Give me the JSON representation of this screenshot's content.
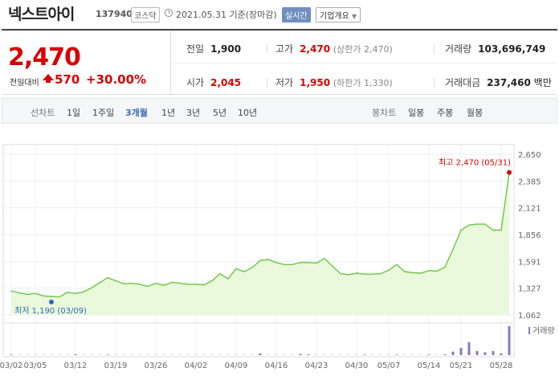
{
  "header": {
    "name": "넥스트아이",
    "code": "137940",
    "market": "코스닥",
    "asof": "2021.05.31 기준(장마감)",
    "realtime_label": "실시간",
    "company_label": "기업개요"
  },
  "quote": {
    "price": "2,470",
    "change_label": "전일대비",
    "change": "570",
    "change_pct": "+30.00%",
    "prev_label": "전일",
    "prev": "1,900",
    "high_label": "고가",
    "high": "2,470",
    "high_sub": "(상한가 2,470)",
    "volume_label": "거래량",
    "volume": "103,696,749",
    "open_label": "시가",
    "open": "2,045",
    "low_label": "저가",
    "low": "1,950",
    "low_sub": "(하한가 1,330)",
    "amount_label": "거래대금",
    "amount": "237,460",
    "amount_unit": "백만"
  },
  "tabs": {
    "line_label": "선차트",
    "periods": [
      "1일",
      "1주일",
      "3개월",
      "1년",
      "3년",
      "5년",
      "10년"
    ],
    "active_period": "3개월",
    "candle_label": "봉차트",
    "candles": [
      "일봉",
      "주봉",
      "월봉"
    ]
  },
  "colors": {
    "up": "#d80000",
    "line": "#6cc644",
    "fill": "#eaf8dc",
    "volume": "#8a78c0",
    "low_marker": "#2b6cb3",
    "active_tab": "#3b6bb5"
  },
  "chart_data": {
    "type": "area",
    "x": [
      "03/02",
      "03/03",
      "03/04",
      "03/05",
      "03/08",
      "03/09",
      "03/10",
      "03/11",
      "03/12",
      "03/15",
      "03/16",
      "03/17",
      "03/18",
      "03/19",
      "03/22",
      "03/23",
      "03/24",
      "03/25",
      "03/26",
      "03/29",
      "03/30",
      "03/31",
      "04/01",
      "04/02",
      "04/05",
      "04/06",
      "04/07",
      "04/08",
      "04/09",
      "04/12",
      "04/13",
      "04/14",
      "04/15",
      "04/16",
      "04/19",
      "04/20",
      "04/21",
      "04/22",
      "04/23",
      "04/26",
      "04/27",
      "04/28",
      "04/29",
      "04/30",
      "05/03",
      "05/04",
      "05/06",
      "05/07",
      "05/10",
      "05/11",
      "05/12",
      "05/13",
      "05/14",
      "05/17",
      "05/18",
      "05/20",
      "05/21",
      "05/24",
      "05/25",
      "05/26",
      "05/27",
      "05/28",
      "05/31"
    ],
    "y": [
      1300,
      1280,
      1265,
      1275,
      1250,
      1245,
      1240,
      1285,
      1275,
      1290,
      1330,
      1380,
      1430,
      1400,
      1370,
      1375,
      1365,
      1345,
      1375,
      1355,
      1385,
      1375,
      1365,
      1365,
      1360,
      1400,
      1470,
      1420,
      1520,
      1490,
      1530,
      1600,
      1610,
      1580,
      1560,
      1560,
      1580,
      1580,
      1575,
      1620,
      1545,
      1470,
      1460,
      1475,
      1465,
      1465,
      1470,
      1505,
      1560,
      1490,
      1480,
      1475,
      1500,
      1495,
      1535,
      1710,
      1900,
      1950,
      1960,
      1960,
      1900,
      1900,
      2470
    ],
    "volume": [
      2,
      1,
      1,
      1,
      1,
      1,
      1,
      1,
      3,
      1,
      1,
      1,
      2,
      1,
      1,
      1,
      1,
      1,
      1,
      1,
      1,
      1,
      1,
      1,
      1,
      1,
      1,
      1,
      1,
      1,
      1,
      6,
      1,
      1,
      1,
      1,
      4,
      3,
      1,
      1,
      1,
      1,
      1,
      1,
      2,
      1,
      1,
      1,
      2,
      1,
      1,
      1,
      2,
      1,
      3,
      12,
      25,
      45,
      14,
      10,
      14,
      6,
      100
    ],
    "x_ticks": [
      "03/02",
      "03/05",
      "03/12",
      "03/19",
      "03/26",
      "04/02",
      "04/09",
      "04/16",
      "04/23",
      "04/30",
      "05/07",
      "05/14",
      "05/21",
      "05/28"
    ],
    "y_ticks": [
      1062,
      1327,
      1591,
      1856,
      2121,
      2385,
      2650
    ],
    "ylim": [
      1062,
      2650
    ],
    "high_annotation": "최고 2,470 (05/31)",
    "low_annotation": "최저 1,190 (03/09)",
    "low_marker_value": 1190,
    "low_marker_x": "03/09",
    "volume_legend": "거래량",
    "grid": true
  }
}
